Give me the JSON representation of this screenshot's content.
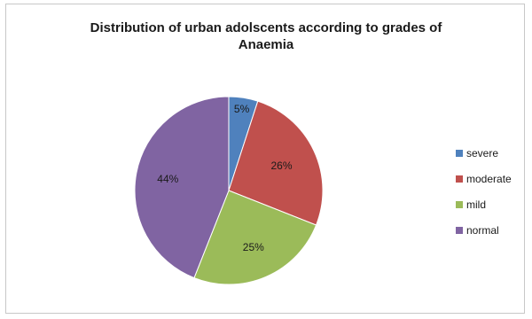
{
  "chart_data": {
    "type": "pie",
    "title_lines": [
      "Distribution of urban adolscents according to grades of",
      "Anaemia"
    ],
    "categories": [
      "severe",
      "moderate",
      "mild",
      "normal"
    ],
    "values": [
      5,
      26,
      25,
      44
    ],
    "labels": [
      "5%",
      "26%",
      "25%",
      "44%"
    ],
    "colors": [
      "#4f81bd",
      "#c0504d",
      "#9bbb59",
      "#8064a2"
    ],
    "legend_position": "right",
    "grid": false
  }
}
